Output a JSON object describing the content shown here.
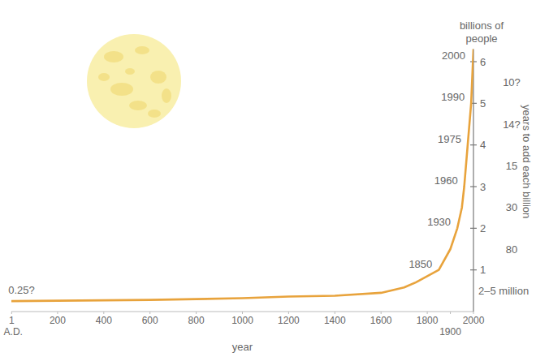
{
  "chart_data": {
    "type": "line",
    "x_label": "year",
    "y_label": "billions of people",
    "color": "#e8a33c",
    "x": [
      1,
      200,
      400,
      600,
      800,
      1000,
      1200,
      1400,
      1600,
      1700,
      1750,
      1800,
      1850,
      1900,
      1930,
      1950,
      1960,
      1975,
      1990,
      2000
    ],
    "values": [
      0.25,
      0.26,
      0.27,
      0.28,
      0.3,
      0.32,
      0.36,
      0.38,
      0.45,
      0.58,
      0.7,
      0.85,
      1.0,
      1.5,
      2.0,
      2.5,
      3.0,
      4.0,
      5.0,
      6.3
    ],
    "xlim": [
      0,
      2000
    ],
    "ylim": [
      0,
      6.3
    ],
    "xticks": [
      1,
      200,
      400,
      600,
      800,
      1000,
      1200,
      1400,
      1600,
      1800,
      1900,
      2000
    ],
    "yticks": [
      1,
      2,
      3,
      4,
      5,
      6
    ],
    "annotations": [
      {
        "text": "0.25?",
        "x": 1,
        "y": 0.25
      },
      {
        "text": "A.D.",
        "x": 1
      }
    ],
    "milestones": [
      {
        "label": "1850",
        "x": 1850,
        "y": 1
      },
      {
        "label": "1930",
        "x": 1930,
        "y": 2
      },
      {
        "label": "1960",
        "x": 1960,
        "y": 3
      },
      {
        "label": "1975",
        "x": 1975,
        "y": 4
      },
      {
        "label": "1990",
        "x": 1990,
        "y": 5
      },
      {
        "label": "2000",
        "x": 2000,
        "y": 6
      }
    ],
    "right_labels": {
      "title": "years to add each billion",
      "items": [
        {
          "label": "2–5 million",
          "y": 0.5
        },
        {
          "label": "80",
          "y": 1.5
        },
        {
          "label": "30",
          "y": 2.5
        },
        {
          "label": "15",
          "y": 3.5
        },
        {
          "label": "14?",
          "y": 4.5
        },
        {
          "label": "10?",
          "y": 5.5
        }
      ]
    }
  }
}
